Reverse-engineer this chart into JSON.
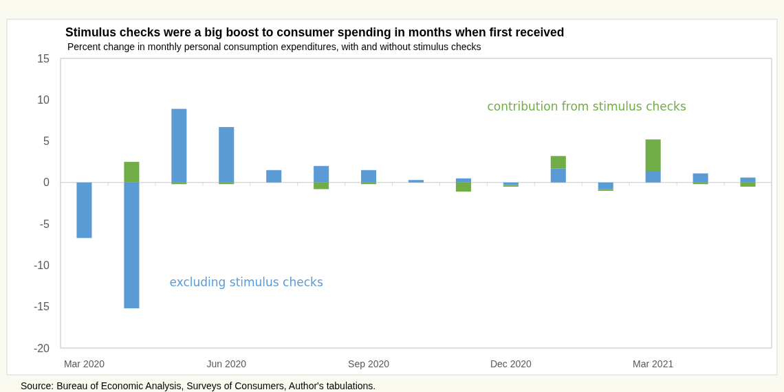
{
  "chart_data": {
    "type": "bar",
    "stacked": true,
    "title": "Stimulus checks were a big boost to consumer spending in months when first received",
    "subtitle": "Percent change in monthly personal consumption expenditures, with and without stimulus checks",
    "categories": [
      "Mar 2020",
      null,
      null,
      "Jun 2020",
      null,
      null,
      "Sep 2020",
      null,
      null,
      "Dec 2020",
      null,
      null,
      "Mar 2021",
      null,
      null
    ],
    "series": [
      {
        "name": "excluding stimulus checks",
        "color": "#5b9bd5",
        "values": [
          -6.7,
          -15.2,
          8.9,
          6.7,
          1.5,
          2.0,
          1.5,
          0.3,
          0.5,
          -0.3,
          1.7,
          -0.8,
          1.4,
          1.1,
          0.6
        ]
      },
      {
        "name": "contribution from stimulus checks",
        "color": "#70ad47",
        "values": [
          0,
          2.5,
          -0.2,
          -0.2,
          0,
          -0.8,
          -0.2,
          0,
          -1.1,
          -0.2,
          1.5,
          -0.2,
          3.8,
          -0.2,
          -0.5
        ]
      }
    ],
    "ylim": [
      -20,
      15
    ],
    "yticks": [
      -20,
      -15,
      -10,
      -5,
      0,
      5,
      10,
      15
    ],
    "annotations": [
      "Source: Bureau of Economic Analysis, Surveys of Consumers, Author's tabulations."
    ]
  }
}
